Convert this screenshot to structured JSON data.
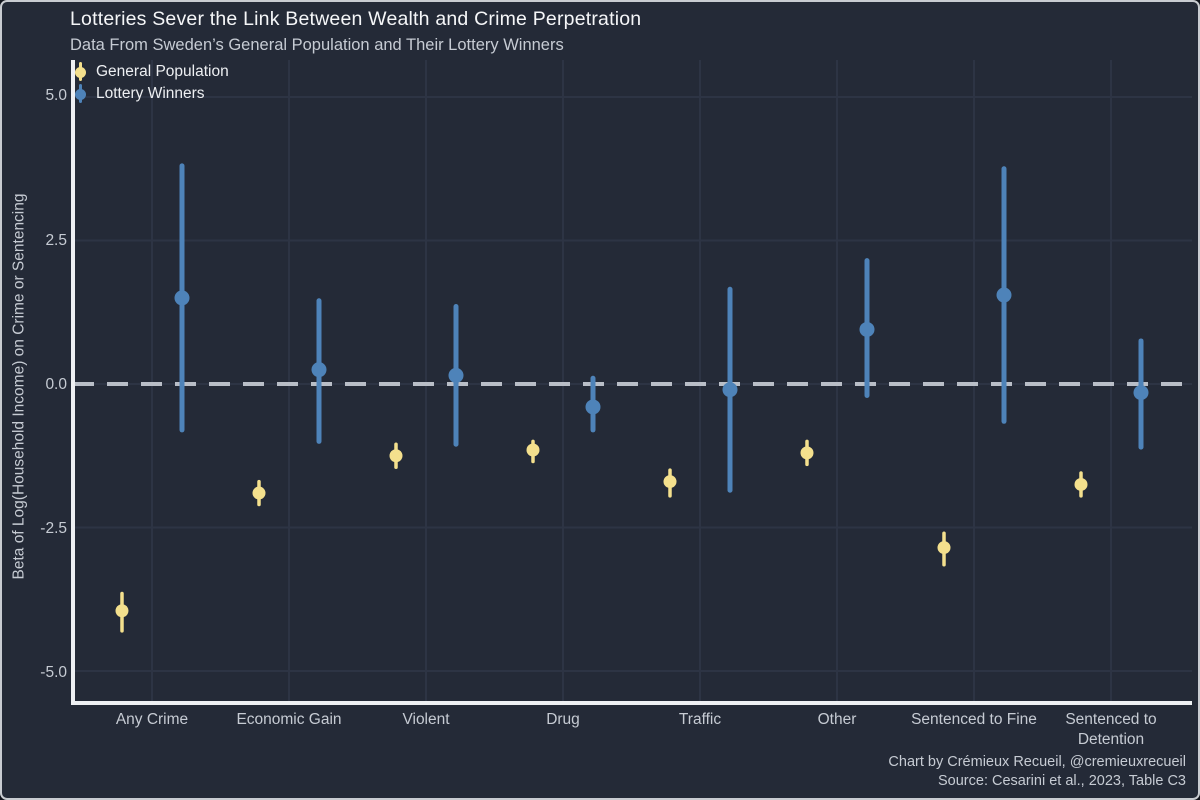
{
  "chart_data": {
    "type": "pointrange",
    "title": "Lotteries Sever the Link Between Wealth and Crime Perpetration",
    "subtitle": "Data From Sweden’s General Population and Their Lottery Winners",
    "ylabel": "Beta of Log(Household Income) on Crime or Sentencing",
    "ylim": [
      -5.6,
      5.65
    ],
    "y_ticks": [
      5.0,
      2.5,
      0.0,
      -2.5,
      -5.0
    ],
    "y_tick_labels": [
      "5.0",
      "2.5",
      "0.0",
      "-2.5",
      "-5.0"
    ],
    "reference_line_y": 0,
    "grid": "on",
    "legend_position": "top-left",
    "categories": [
      "Any Crime",
      "Economic Gain",
      "Violent",
      "Drug",
      "Traffic",
      "Other",
      "Sentenced to Fine",
      "Sentenced to Detention"
    ],
    "series": [
      {
        "name": "General Population",
        "color": "#f4e08d",
        "points": [
          {
            "y": -3.95,
            "lo": -4.3,
            "hi": -3.65
          },
          {
            "y": -1.9,
            "lo": -2.1,
            "hi": -1.7
          },
          {
            "y": -1.25,
            "lo": -1.45,
            "hi": -1.05
          },
          {
            "y": -1.15,
            "lo": -1.35,
            "hi": -1.0
          },
          {
            "y": -1.7,
            "lo": -1.95,
            "hi": -1.5
          },
          {
            "y": -1.2,
            "lo": -1.4,
            "hi": -1.0
          },
          {
            "y": -2.85,
            "lo": -3.15,
            "hi": -2.6
          },
          {
            "y": -1.75,
            "lo": -1.95,
            "hi": -1.55
          }
        ]
      },
      {
        "name": "Lottery Winners",
        "color": "#4e83b9",
        "points": [
          {
            "y": 1.5,
            "lo": -0.8,
            "hi": 3.8
          },
          {
            "y": 0.25,
            "lo": -1.0,
            "hi": 1.45
          },
          {
            "y": 0.15,
            "lo": -1.05,
            "hi": 1.35
          },
          {
            "y": -0.4,
            "lo": -0.8,
            "hi": 0.1
          },
          {
            "y": -0.1,
            "lo": -1.85,
            "hi": 1.65
          },
          {
            "y": 0.95,
            "lo": -0.2,
            "hi": 2.15
          },
          {
            "y": 1.55,
            "lo": -0.65,
            "hi": 3.75
          },
          {
            "y": -0.15,
            "lo": -1.1,
            "hi": 0.75
          }
        ]
      }
    ],
    "caption_line1": "Chart by Crémieux Recueil, @cremieuxrecueil",
    "caption_line2": "Source: Cesarini et al., 2023, Table C3"
  },
  "colors": {
    "background": "#242a37",
    "gridline": "#2d3444",
    "axis": "#eef0f3",
    "reference_line": "#b9bec7",
    "title_text": "#f5f6f8",
    "muted_text": "#c6cbd3",
    "general_population": "#f4e08d",
    "lottery_winners": "#4e83b9"
  }
}
